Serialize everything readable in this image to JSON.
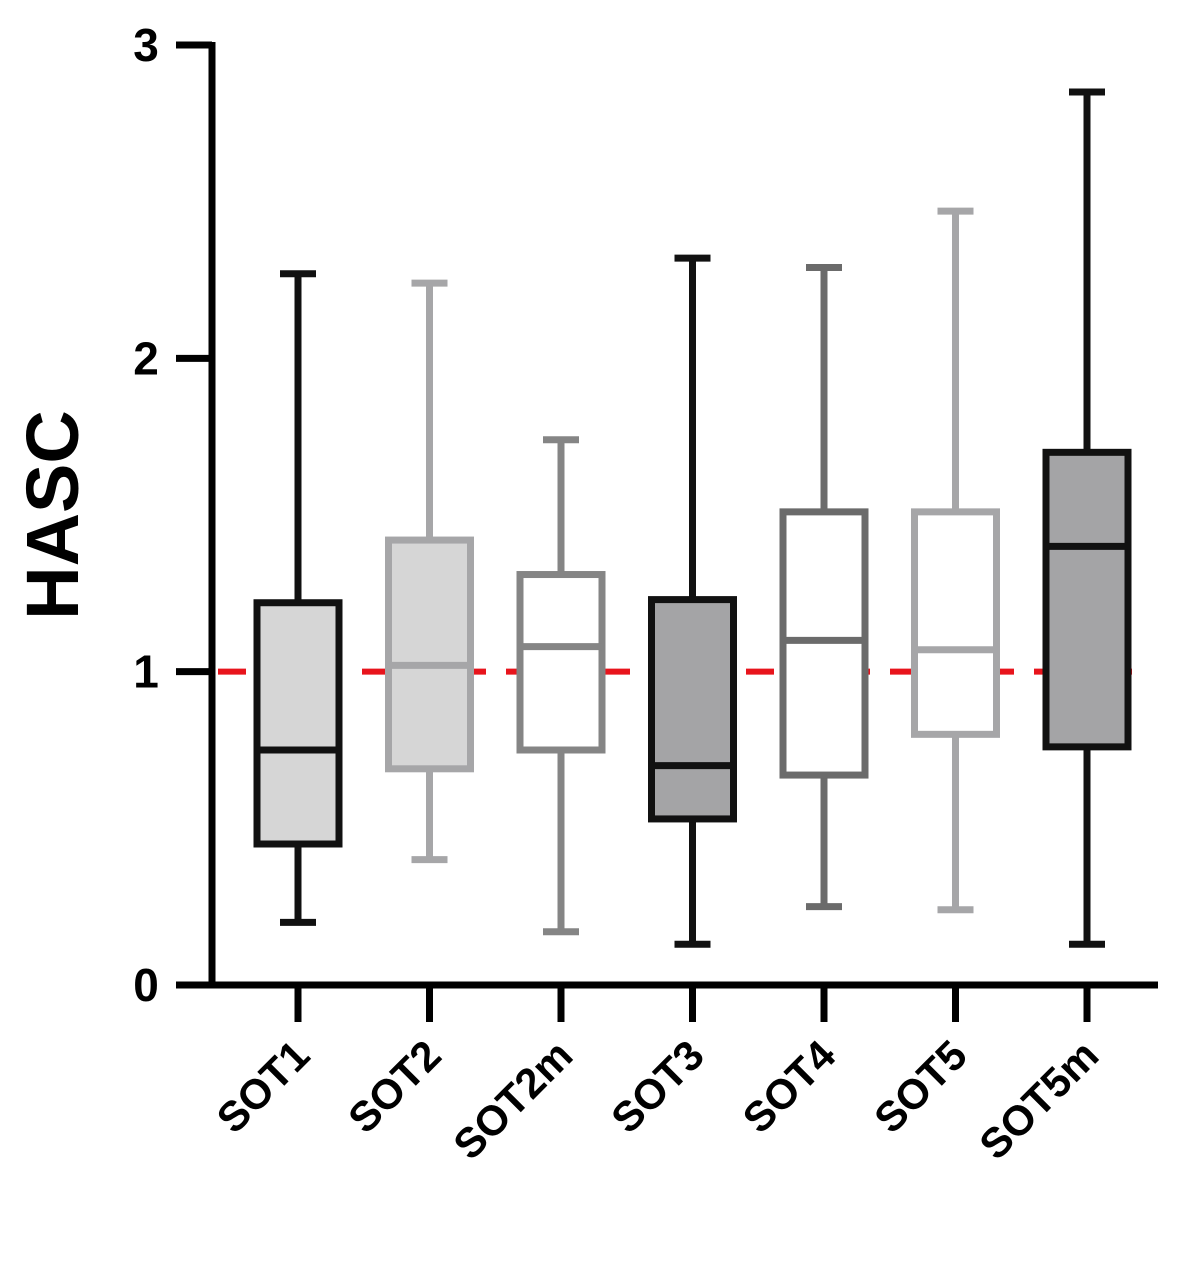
{
  "chart_data": {
    "type": "box",
    "ylabel": "HASC",
    "ylim": [
      0,
      3
    ],
    "yticks": [
      "0",
      "1",
      "2",
      "3"
    ],
    "reference_line": {
      "y": 1,
      "color": "#e8141c",
      "style": "dashed"
    },
    "grid": false,
    "categories": [
      "SOT1",
      "SOT2",
      "SOT2m",
      "SOT3",
      "SOT4",
      "SOT5",
      "SOT5m"
    ],
    "boxes": [
      {
        "category": "SOT1",
        "min": 0.2,
        "q1": 0.45,
        "median": 0.75,
        "q3": 1.22,
        "max": 2.27,
        "fill": "#d6d6d6",
        "stroke": "#111111"
      },
      {
        "category": "SOT2",
        "min": 0.4,
        "q1": 0.69,
        "median": 1.02,
        "q3": 1.42,
        "max": 2.24,
        "fill": "#d6d6d6",
        "stroke": "#a6a6a8"
      },
      {
        "category": "SOT2m",
        "min": 0.17,
        "q1": 0.75,
        "median": 1.08,
        "q3": 1.31,
        "max": 1.74,
        "fill": "#ffffff",
        "stroke": "#858585"
      },
      {
        "category": "SOT3",
        "min": 0.13,
        "q1": 0.53,
        "median": 0.7,
        "q3": 1.23,
        "max": 2.32,
        "fill": "#a4a4a6",
        "stroke": "#111111"
      },
      {
        "category": "SOT4",
        "min": 0.25,
        "q1": 0.67,
        "median": 1.1,
        "q3": 1.51,
        "max": 2.29,
        "fill": "#ffffff",
        "stroke": "#6b6b6b"
      },
      {
        "category": "SOT5",
        "min": 0.24,
        "q1": 0.8,
        "median": 1.07,
        "q3": 1.51,
        "max": 2.47,
        "fill": "#ffffff",
        "stroke": "#a6a6a8"
      },
      {
        "category": "SOT5m",
        "min": 0.13,
        "q1": 0.76,
        "median": 1.4,
        "q3": 1.7,
        "max": 2.85,
        "fill": "#a4a4a6",
        "stroke": "#111111"
      }
    ]
  }
}
